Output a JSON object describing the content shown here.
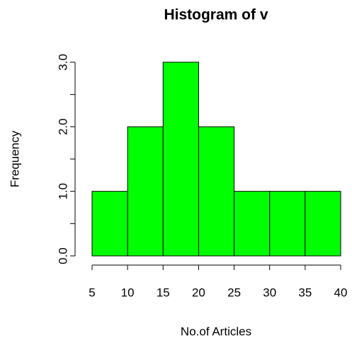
{
  "chart_data": {
    "type": "histogram",
    "title": "Histogram of v",
    "xlabel": "No.of Articles",
    "ylabel": "Frequency",
    "bins": [
      5,
      10,
      15,
      20,
      25,
      30,
      35,
      40
    ],
    "values": [
      1,
      2,
      3,
      2,
      1,
      1,
      1
    ],
    "color": "#00ff00",
    "xlim": [
      5,
      40
    ],
    "xticks": [
      5,
      10,
      15,
      20,
      25,
      30,
      35,
      40
    ],
    "ylim": [
      0,
      3
    ],
    "yticks": [
      {
        "value": 0,
        "label": "0.0"
      },
      {
        "value": 1,
        "label": "1.0"
      },
      {
        "value": 2,
        "label": "2.0"
      },
      {
        "value": 3,
        "label": "3.0"
      }
    ],
    "yminorticks": [
      0.5,
      1.5,
      2.5
    ]
  }
}
